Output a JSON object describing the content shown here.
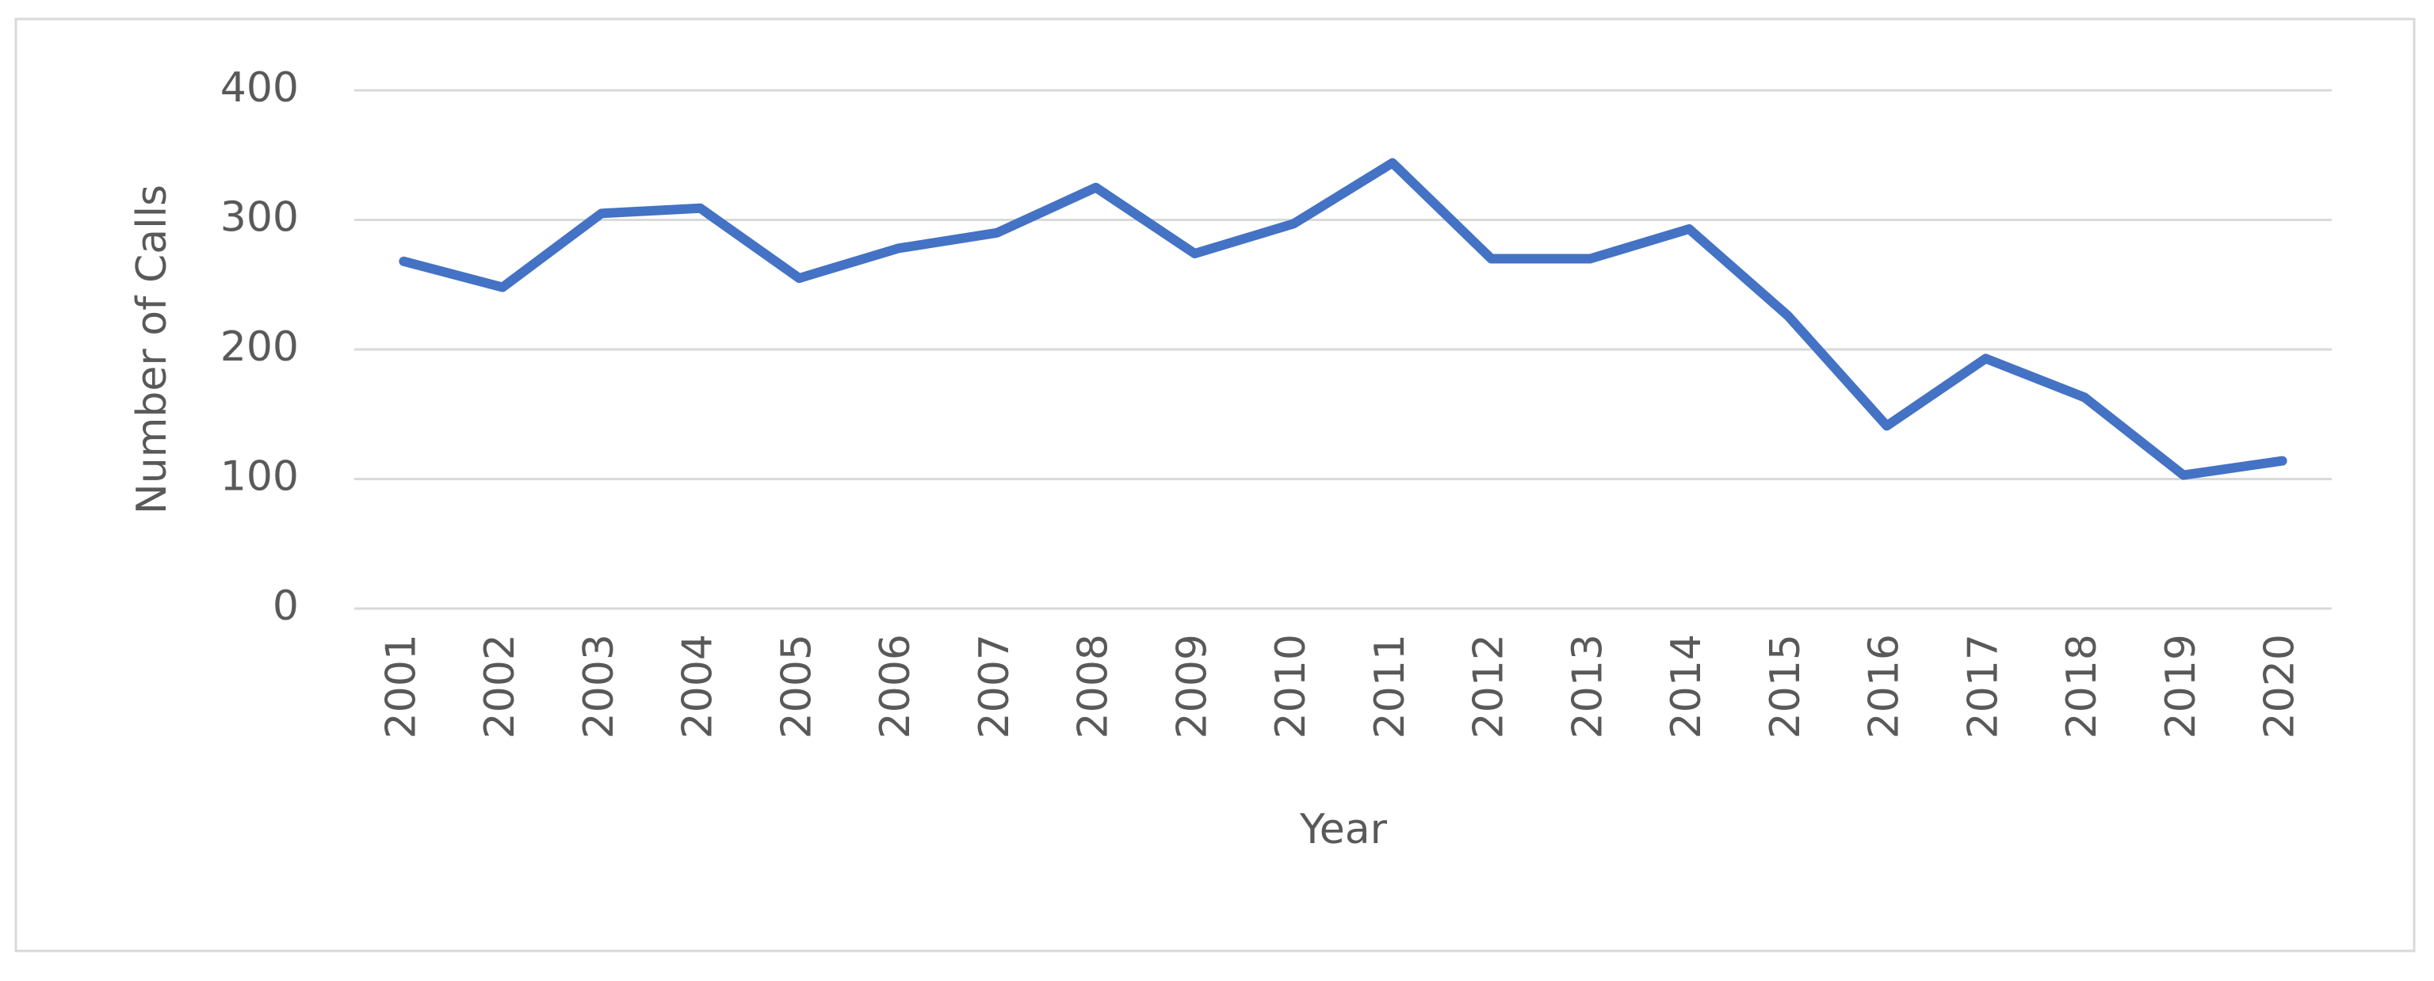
{
  "chart_data": {
    "type": "line",
    "x_label": "Year",
    "y_label": "Number of Calls",
    "categories": [
      "2001",
      "2002",
      "2003",
      "2004",
      "2005",
      "2006",
      "2007",
      "2008",
      "2009",
      "2010",
      "2011",
      "2012",
      "2013",
      "2014",
      "2015",
      "2016",
      "2017",
      "2018",
      "2019",
      "2020"
    ],
    "values": [
      268,
      248,
      305,
      309,
      255,
      278,
      290,
      325,
      274,
      297,
      344,
      270,
      270,
      293,
      226,
      141,
      193,
      163,
      103,
      114
    ],
    "color": "#4472c4",
    "ylim": [
      0,
      400
    ],
    "yticks": [
      0,
      100,
      200,
      300,
      400
    ],
    "grid": true
  }
}
